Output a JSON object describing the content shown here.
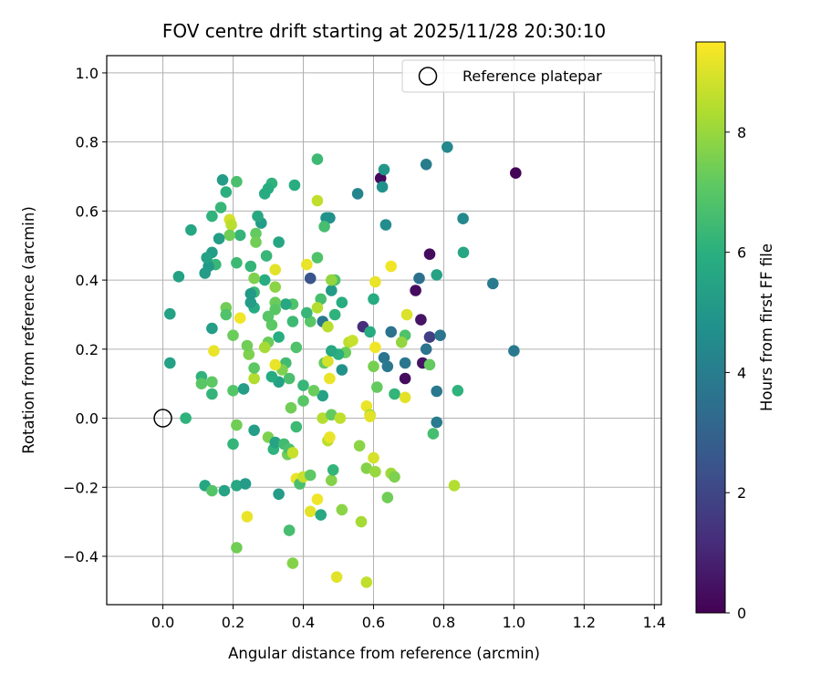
{
  "chart_data": {
    "type": "scatter",
    "title": "FOV centre drift starting at 2025/11/28 20:30:10",
    "xlabel": "Angular distance from reference (arcmin)",
    "ylabel": "Rotation from reference (arcmin)",
    "xlim": [
      -0.16,
      1.42
    ],
    "ylim": [
      -0.54,
      1.05
    ],
    "xticks": [
      "0.0",
      "0.2",
      "0.4",
      "0.6",
      "0.8",
      "1.0",
      "1.2",
      "1.4"
    ],
    "xtick_values": [
      0.0,
      0.2,
      0.4,
      0.6,
      0.8,
      1.0,
      1.2,
      1.4
    ],
    "yticks": [
      "−0.4",
      "−0.2",
      "0.0",
      "0.2",
      "0.4",
      "0.6",
      "0.8",
      "1.0"
    ],
    "ytick_values": [
      -0.4,
      -0.2,
      0.0,
      0.2,
      0.4,
      0.6,
      0.8,
      1.0
    ],
    "grid": true,
    "legend": {
      "placement": "top-right",
      "entries": [
        {
          "label": "Reference platepar",
          "marker": "open-circle"
        }
      ]
    },
    "colorbar": {
      "label": "Hours from first FF file",
      "colormap": "viridis",
      "range": [
        0,
        9.5
      ],
      "ticks": [
        "0",
        "2",
        "4",
        "6",
        "8"
      ],
      "tick_values": [
        0,
        2,
        4,
        6,
        8
      ]
    },
    "reference_point": {
      "x": 0.0,
      "y": 0.0
    },
    "points": [
      [
        1.005,
        0.71,
        0.1
      ],
      [
        0.62,
        0.695,
        0.2
      ],
      [
        0.75,
        0.735,
        4.0
      ],
      [
        0.81,
        0.785,
        4.4
      ],
      [
        0.63,
        0.72,
        5.0
      ],
      [
        0.855,
        0.578,
        4.4
      ],
      [
        0.94,
        0.39,
        3.9
      ],
      [
        1.0,
        0.195,
        3.8
      ],
      [
        0.76,
        0.475,
        0.3
      ],
      [
        0.72,
        0.37,
        0.3
      ],
      [
        0.735,
        0.285,
        0.5
      ],
      [
        0.76,
        0.235,
        1.8
      ],
      [
        0.74,
        0.16,
        0.5
      ],
      [
        0.75,
        0.2,
        3.6
      ],
      [
        0.69,
        0.115,
        0.3
      ],
      [
        0.69,
        0.16,
        3.7
      ],
      [
        0.65,
        0.25,
        3.6
      ],
      [
        0.63,
        0.175,
        3.7
      ],
      [
        0.64,
        0.15,
        3.8
      ],
      [
        0.73,
        0.405,
        3.5
      ],
      [
        0.78,
        0.415,
        5.5
      ],
      [
        0.79,
        0.24,
        3.7
      ],
      [
        0.78,
        0.078,
        3.8
      ],
      [
        0.78,
        -0.012,
        3.9
      ],
      [
        0.57,
        0.265,
        1.2
      ],
      [
        0.42,
        0.405,
        2.5
      ],
      [
        0.455,
        0.28,
        3.8
      ],
      [
        0.555,
        0.65,
        4.3
      ],
      [
        0.625,
        0.67,
        4.8
      ],
      [
        0.635,
        0.56,
        4.6
      ],
      [
        0.856,
        0.48,
        5.6
      ],
      [
        0.84,
        0.08,
        6.1
      ],
      [
        0.77,
        -0.045,
        6.6
      ],
      [
        0.76,
        0.155,
        7.2
      ],
      [
        0.69,
        0.24,
        6.8
      ],
      [
        0.68,
        0.22,
        7.9
      ],
      [
        0.66,
        0.07,
        6.2
      ],
      [
        0.695,
        0.3,
        9.0
      ],
      [
        0.69,
        0.06,
        9.1
      ],
      [
        0.65,
        0.44,
        9.3
      ],
      [
        0.605,
        0.395,
        9.2
      ],
      [
        0.605,
        0.205,
        9.3
      ],
      [
        0.6,
        0.345,
        5.8
      ],
      [
        0.6,
        0.15,
        7.5
      ],
      [
        0.61,
        0.09,
        7.2
      ],
      [
        0.59,
        0.25,
        5.8
      ],
      [
        0.58,
        0.035,
        9.2
      ],
      [
        0.59,
        0.01,
        8.3
      ],
      [
        0.59,
        0.005,
        9.1
      ],
      [
        0.56,
        -0.08,
        7.8
      ],
      [
        0.53,
        0.22,
        8.5
      ],
      [
        0.54,
        0.225,
        8.7
      ],
      [
        0.52,
        0.19,
        7.3
      ],
      [
        0.51,
        0.14,
        4.8
      ],
      [
        0.51,
        0.335,
        5.9
      ],
      [
        0.5,
        0.185,
        6.0
      ],
      [
        0.49,
        0.4,
        6.8
      ],
      [
        0.49,
        0.3,
        6.1
      ],
      [
        0.48,
        0.37,
        5.1
      ],
      [
        0.475,
        0.58,
        4.6
      ],
      [
        0.47,
        0.58,
        4.9
      ],
      [
        0.465,
        0.58,
        4.8
      ],
      [
        0.46,
        0.555,
        6.6
      ],
      [
        0.44,
        0.75,
        6.4
      ],
      [
        0.44,
        0.63,
        8.6
      ],
      [
        0.44,
        0.465,
        6.8
      ],
      [
        0.45,
        0.345,
        6.6
      ],
      [
        0.44,
        0.32,
        8.4
      ],
      [
        0.47,
        0.265,
        8.5
      ],
      [
        0.46,
        0.16,
        7.2
      ],
      [
        0.47,
        0.165,
        8.9
      ],
      [
        0.475,
        0.115,
        9.2
      ],
      [
        0.48,
        0.195,
        5.7
      ],
      [
        0.48,
        0.4,
        7.9
      ],
      [
        0.455,
        0.065,
        5.4
      ],
      [
        0.43,
        0.08,
        7.3
      ],
      [
        0.42,
        0.28,
        7.0
      ],
      [
        0.41,
        0.305,
        6.3
      ],
      [
        0.41,
        0.445,
        9.2
      ],
      [
        0.4,
        0.095,
        6.3
      ],
      [
        0.4,
        0.05,
        7.0
      ],
      [
        0.38,
        0.205,
        6.8
      ],
      [
        0.38,
        -0.025,
        6.4
      ],
      [
        0.375,
        0.675,
        5.9
      ],
      [
        0.37,
        0.28,
        6.4
      ],
      [
        0.37,
        0.33,
        6.8
      ],
      [
        0.365,
        0.03,
        7.4
      ],
      [
        0.36,
        0.115,
        6.7
      ],
      [
        0.35,
        0.16,
        6.5
      ],
      [
        0.35,
        0.33,
        5.7
      ],
      [
        0.34,
        0.14,
        7.6
      ],
      [
        0.33,
        0.105,
        5.4
      ],
      [
        0.33,
        0.235,
        5.9
      ],
      [
        0.33,
        0.51,
        5.6
      ],
      [
        0.32,
        0.335,
        7.3
      ],
      [
        0.32,
        0.315,
        7.0
      ],
      [
        0.32,
        0.38,
        7.8
      ],
      [
        0.32,
        0.43,
        9.1
      ],
      [
        0.32,
        0.155,
        9.2
      ],
      [
        0.31,
        0.12,
        5.8
      ],
      [
        0.31,
        0.27,
        7.1
      ],
      [
        0.31,
        0.68,
        6.1
      ],
      [
        0.3,
        0.22,
        7.3
      ],
      [
        0.3,
        0.295,
        7.0
      ],
      [
        0.3,
        0.665,
        5.9
      ],
      [
        0.29,
        0.65,
        5.8
      ],
      [
        0.29,
        0.205,
        8.2
      ],
      [
        0.295,
        0.47,
        6.3
      ],
      [
        0.29,
        0.4,
        5.9
      ],
      [
        0.28,
        0.565,
        5.2
      ],
      [
        0.27,
        0.585,
        5.7
      ],
      [
        0.265,
        0.535,
        7.2
      ],
      [
        0.265,
        0.51,
        7.4
      ],
      [
        0.26,
        0.405,
        7.6
      ],
      [
        0.26,
        0.365,
        6.3
      ],
      [
        0.26,
        0.32,
        5.8
      ],
      [
        0.26,
        0.115,
        8.4
      ],
      [
        0.26,
        0.145,
        7.1
      ],
      [
        0.25,
        0.335,
        5.2
      ],
      [
        0.25,
        0.36,
        5.1
      ],
      [
        0.25,
        0.44,
        6.2
      ],
      [
        0.245,
        0.185,
        7.6
      ],
      [
        0.24,
        0.21,
        7.4
      ],
      [
        0.22,
        0.29,
        9.3
      ],
      [
        0.22,
        0.53,
        6.2
      ],
      [
        0.21,
        0.685,
        6.7
      ],
      [
        0.21,
        0.45,
        6.4
      ],
      [
        0.2,
        0.08,
        6.9
      ],
      [
        0.2,
        0.24,
        7.3
      ],
      [
        0.19,
        0.575,
        8.9
      ],
      [
        0.195,
        0.56,
        8.5
      ],
      [
        0.19,
        0.53,
        7.4
      ],
      [
        0.18,
        0.655,
        6.0
      ],
      [
        0.18,
        0.32,
        7.4
      ],
      [
        0.18,
        0.3,
        6.8
      ],
      [
        0.17,
        0.69,
        5.2
      ],
      [
        0.165,
        0.61,
        6.3
      ],
      [
        0.16,
        0.52,
        5.3
      ],
      [
        0.15,
        0.445,
        6.3
      ],
      [
        0.14,
        0.585,
        6.1
      ],
      [
        0.14,
        0.48,
        5.3
      ],
      [
        0.14,
        0.26,
        5.3
      ],
      [
        0.145,
        0.195,
        9.2
      ],
      [
        0.14,
        0.105,
        7.1
      ],
      [
        0.14,
        0.07,
        6.2
      ],
      [
        0.13,
        0.44,
        5.1
      ],
      [
        0.125,
        0.465,
        5.4
      ],
      [
        0.12,
        0.42,
        5.2
      ],
      [
        0.11,
        0.12,
        6.1
      ],
      [
        0.11,
        0.1,
        7.0
      ],
      [
        0.08,
        0.545,
        5.6
      ],
      [
        0.045,
        0.41,
        5.4
      ],
      [
        0.02,
        0.302,
        5.4
      ],
      [
        0.02,
        0.16,
        5.4
      ],
      [
        0.065,
        0.0,
        6.1
      ],
      [
        0.23,
        0.085,
        5.3
      ],
      [
        0.26,
        -0.035,
        5.3
      ],
      [
        0.2,
        -0.075,
        6.2
      ],
      [
        0.21,
        -0.02,
        7.4
      ],
      [
        0.3,
        -0.055,
        7.6
      ],
      [
        0.315,
        -0.09,
        6.1
      ],
      [
        0.32,
        -0.07,
        5.5
      ],
      [
        0.33,
        -0.22,
        5.2
      ],
      [
        0.345,
        -0.075,
        6.5
      ],
      [
        0.355,
        -0.105,
        7.4
      ],
      [
        0.36,
        -0.09,
        6.7
      ],
      [
        0.37,
        -0.1,
        8.7
      ],
      [
        0.38,
        -0.175,
        9.2
      ],
      [
        0.39,
        -0.19,
        6.7
      ],
      [
        0.4,
        -0.17,
        8.7
      ],
      [
        0.42,
        -0.165,
        7.1
      ],
      [
        0.42,
        -0.27,
        9.1
      ],
      [
        0.44,
        -0.235,
        9.3
      ],
      [
        0.45,
        -0.28,
        5.7
      ],
      [
        0.455,
        0.0,
        8.4
      ],
      [
        0.47,
        -0.065,
        8.5
      ],
      [
        0.475,
        -0.055,
        9.2
      ],
      [
        0.48,
        -0.18,
        7.7
      ],
      [
        0.48,
        0.01,
        7.2
      ],
      [
        0.485,
        -0.15,
        6.2
      ],
      [
        0.495,
        -0.46,
        9.1
      ],
      [
        0.505,
        0.0,
        8.6
      ],
      [
        0.51,
        -0.265,
        7.8
      ],
      [
        0.565,
        -0.3,
        8.2
      ],
      [
        0.58,
        -0.145,
        7.7
      ],
      [
        0.58,
        -0.475,
        8.6
      ],
      [
        0.6,
        -0.115,
        8.9
      ],
      [
        0.605,
        -0.155,
        8.0
      ],
      [
        0.64,
        -0.23,
        7.4
      ],
      [
        0.65,
        -0.16,
        8.1
      ],
      [
        0.66,
        -0.17,
        7.6
      ],
      [
        0.83,
        -0.195,
        8.4
      ],
      [
        0.12,
        -0.195,
        5.6
      ],
      [
        0.14,
        -0.21,
        6.9
      ],
      [
        0.175,
        -0.21,
        5.5
      ],
      [
        0.21,
        -0.195,
        5.7
      ],
      [
        0.235,
        -0.19,
        5.2
      ],
      [
        0.24,
        -0.285,
        9.2
      ],
      [
        0.21,
        -0.375,
        7.4
      ],
      [
        0.36,
        -0.325,
        6.6
      ],
      [
        0.37,
        -0.42,
        7.7
      ]
    ]
  }
}
